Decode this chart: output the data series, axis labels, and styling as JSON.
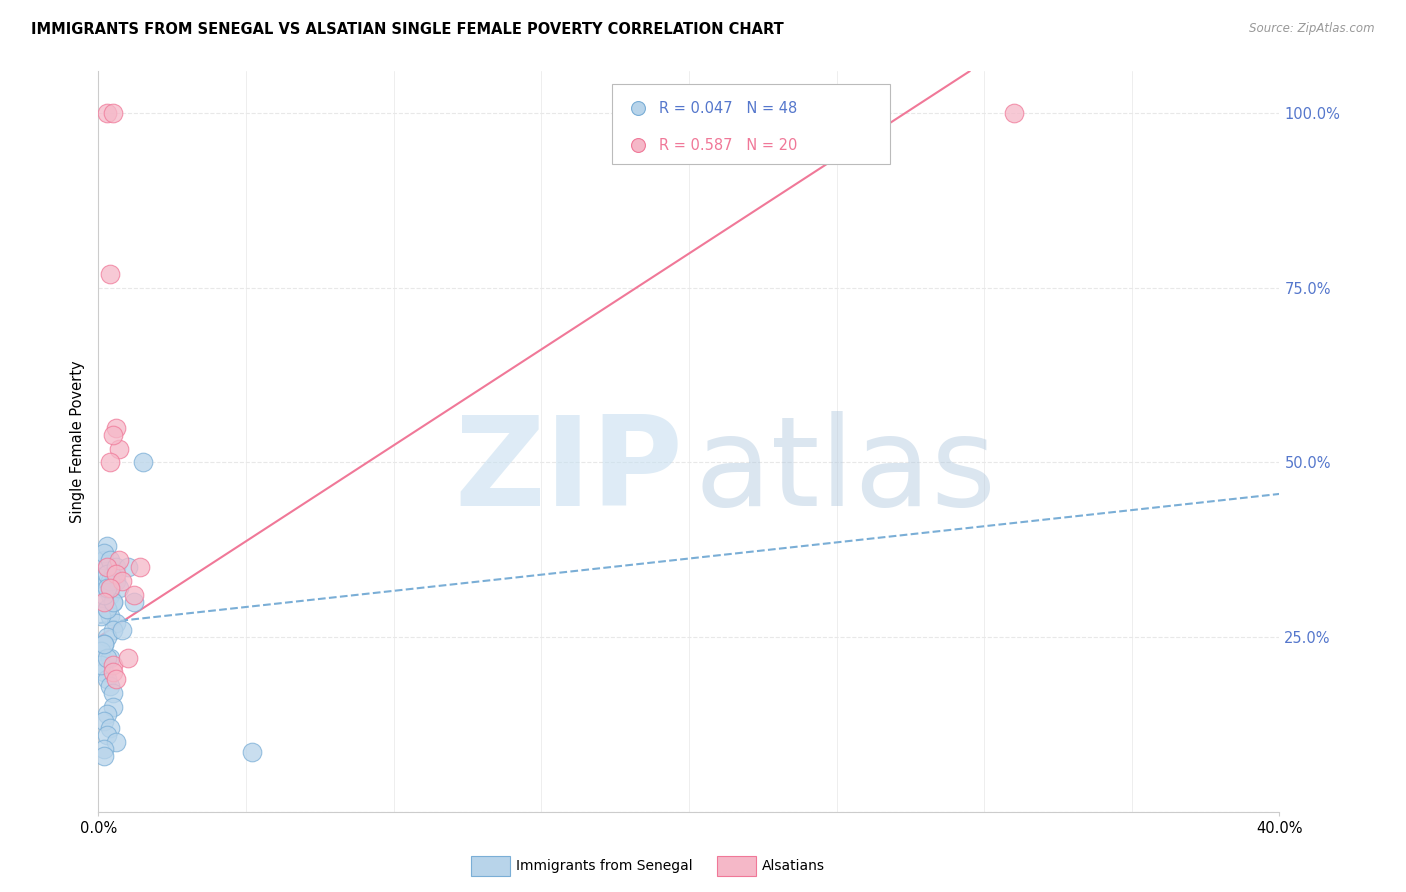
{
  "title": "IMMIGRANTS FROM SENEGAL VS ALSATIAN SINGLE FEMALE POVERTY CORRELATION CHART",
  "source": "Source: ZipAtlas.com",
  "ylabel": "Single Female Poverty",
  "xlim": [
    0.0,
    0.4
  ],
  "ylim": [
    0.0,
    1.06
  ],
  "ytick_positions": [
    0.0,
    0.25,
    0.5,
    0.75,
    1.0
  ],
  "yticklabels_right": [
    "",
    "25.0%",
    "50.0%",
    "75.0%",
    "100.0%"
  ],
  "xtick_positions": [
    0.0,
    0.4
  ],
  "xticklabels": [
    "0.0%",
    "40.0%"
  ],
  "blue_fill": "#b8d4ea",
  "pink_fill": "#f5b8c8",
  "blue_edge": "#7aaed6",
  "pink_edge": "#f07898",
  "line_blue": "#7aaed6",
  "line_pink": "#f07898",
  "tick_label_color": "#5577cc",
  "grid_color": "#e8e8e8",
  "blue_scatter_x": [
    0.002,
    0.003,
    0.004,
    0.005,
    0.003,
    0.004,
    0.006,
    0.005,
    0.003,
    0.002,
    0.001,
    0.004,
    0.003,
    0.002,
    0.005,
    0.006,
    0.007,
    0.003,
    0.002,
    0.004,
    0.001,
    0.003,
    0.005,
    0.002,
    0.004,
    0.003,
    0.006,
    0.002,
    0.003,
    0.001,
    0.004,
    0.005,
    0.003,
    0.002,
    0.01,
    0.008,
    0.012,
    0.005,
    0.003,
    0.002,
    0.004,
    0.003,
    0.006,
    0.002,
    0.015,
    0.003,
    0.002,
    0.052
  ],
  "blue_scatter_y": [
    0.32,
    0.33,
    0.31,
    0.3,
    0.29,
    0.28,
    0.27,
    0.26,
    0.25,
    0.24,
    0.23,
    0.22,
    0.35,
    0.36,
    0.34,
    0.33,
    0.32,
    0.38,
    0.37,
    0.36,
    0.28,
    0.29,
    0.3,
    0.31,
    0.33,
    0.34,
    0.35,
    0.2,
    0.19,
    0.21,
    0.18,
    0.17,
    0.22,
    0.24,
    0.35,
    0.26,
    0.3,
    0.15,
    0.14,
    0.13,
    0.12,
    0.11,
    0.1,
    0.09,
    0.5,
    0.32,
    0.08,
    0.085
  ],
  "pink_scatter_x": [
    0.003,
    0.005,
    0.006,
    0.007,
    0.004,
    0.005,
    0.007,
    0.003,
    0.004,
    0.006,
    0.008,
    0.004,
    0.014,
    0.012,
    0.005,
    0.01,
    0.005,
    0.006,
    0.31,
    0.002
  ],
  "pink_scatter_y": [
    1.0,
    1.0,
    0.55,
    0.52,
    0.5,
    0.54,
    0.36,
    0.35,
    0.77,
    0.34,
    0.33,
    0.32,
    0.35,
    0.31,
    0.21,
    0.22,
    0.2,
    0.19,
    1.0,
    0.3
  ],
  "blue_line_x": [
    0.0,
    0.4
  ],
  "blue_line_y": [
    0.27,
    0.455
  ],
  "pink_line_x": [
    0.0,
    0.295
  ],
  "pink_line_y": [
    0.25,
    1.06
  ],
  "legend_blue_r": "R = 0.047",
  "legend_blue_n": "N = 48",
  "legend_pink_r": "R = 0.587",
  "legend_pink_n": "N = 20",
  "bottom_label_blue": "Immigrants from Senegal",
  "bottom_label_pink": "Alsatians",
  "watermark_zip_color": "#c8dff0",
  "watermark_atlas_color": "#b0c8de"
}
